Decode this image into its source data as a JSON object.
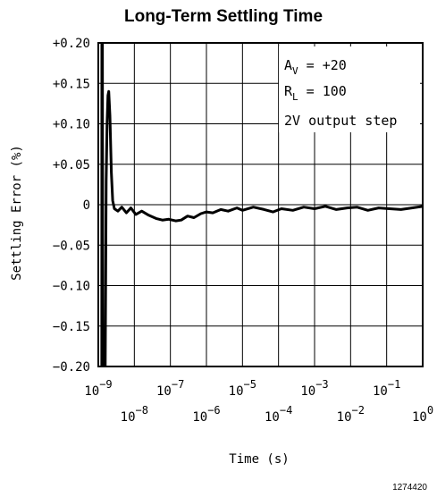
{
  "chart_data": {
    "type": "line",
    "title": "Long-Term Settling Time",
    "xlabel": "Time (s)",
    "ylabel": "Settling Error (%)",
    "x_scale": "log",
    "xlim": [
      1e-09,
      1
    ],
    "ylim": [
      -0.2,
      0.2
    ],
    "grid": true,
    "y_ticks": [
      {
        "value": 0.2,
        "label": "+0.20"
      },
      {
        "value": 0.15,
        "label": "+0.15"
      },
      {
        "value": 0.1,
        "label": "+0.10"
      },
      {
        "value": 0.05,
        "label": "+0.05"
      },
      {
        "value": 0.0,
        "label": "0"
      },
      {
        "value": -0.05,
        "label": "-0.05"
      },
      {
        "value": -0.1,
        "label": "-0.10"
      },
      {
        "value": -0.15,
        "label": "-0.15"
      },
      {
        "value": -0.2,
        "label": "-0.20"
      }
    ],
    "x_ticks": [
      {
        "value": 1e-09,
        "base": "10",
        "exp": "-9",
        "row": 1
      },
      {
        "value": 1e-08,
        "base": "10",
        "exp": "-8",
        "row": 2
      },
      {
        "value": 1e-07,
        "base": "10",
        "exp": "-7",
        "row": 1
      },
      {
        "value": 1e-06,
        "base": "10",
        "exp": "-6",
        "row": 2
      },
      {
        "value": 1e-05,
        "base": "10",
        "exp": "-5",
        "row": 1
      },
      {
        "value": 0.0001,
        "base": "10",
        "exp": "-4",
        "row": 2
      },
      {
        "value": 0.001,
        "base": "10",
        "exp": "-3",
        "row": 1
      },
      {
        "value": 0.01,
        "base": "10",
        "exp": "-2",
        "row": 2
      },
      {
        "value": 0.1,
        "base": "10",
        "exp": "-1",
        "row": 1
      },
      {
        "value": 1,
        "base": "10",
        "exp": "0",
        "row": 2
      }
    ],
    "annotations": [
      {
        "main": "A",
        "sub": "V",
        "rest": " = +20"
      },
      {
        "main": "R",
        "sub": "L",
        "rest": " = 100"
      },
      {
        "main": "2V output step",
        "sub": "",
        "rest": ""
      }
    ],
    "series": [
      {
        "values": [
          [
            1.25e-09,
            -0.21
          ],
          [
            1.26e-09,
            0.21
          ],
          [
            1.3e-09,
            0.21
          ],
          [
            1.33e-09,
            -0.21
          ],
          [
            1.55e-09,
            -0.21
          ],
          [
            1.65e-09,
            0.03
          ],
          [
            1.75e-09,
            0.1
          ],
          [
            1.85e-09,
            0.135
          ],
          [
            1.95e-09,
            0.14
          ],
          [
            2.1e-09,
            0.11
          ],
          [
            2.3e-09,
            0.04
          ],
          [
            2.5e-09,
            0.005
          ],
          [
            2.8e-09,
            -0.005
          ],
          [
            3.5e-09,
            -0.008
          ],
          [
            4.5e-09,
            -0.003
          ],
          [
            6e-09,
            -0.01
          ],
          [
            8e-09,
            -0.004
          ],
          [
            1.1e-08,
            -0.012
          ],
          [
            1.6e-08,
            -0.008
          ],
          [
            2.5e-08,
            -0.013
          ],
          [
            4e-08,
            -0.017
          ],
          [
            6e-08,
            -0.019
          ],
          [
            9e-08,
            -0.018
          ],
          [
            1.4e-07,
            -0.02
          ],
          [
            2e-07,
            -0.019
          ],
          [
            3e-07,
            -0.014
          ],
          [
            4.5e-07,
            -0.016
          ],
          [
            7e-07,
            -0.011
          ],
          [
            1e-06,
            -0.009
          ],
          [
            1.5e-06,
            -0.01
          ],
          [
            2.5e-06,
            -0.006
          ],
          [
            4e-06,
            -0.008
          ],
          [
            7e-06,
            -0.004
          ],
          [
            1e-05,
            -0.007
          ],
          [
            2e-05,
            -0.003
          ],
          [
            4e-05,
            -0.006
          ],
          [
            7e-05,
            -0.009
          ],
          [
            0.00012,
            -0.005
          ],
          [
            0.00025,
            -0.007
          ],
          [
            0.0005,
            -0.003
          ],
          [
            0.001,
            -0.005
          ],
          [
            0.002,
            -0.002
          ],
          [
            0.004,
            -0.006
          ],
          [
            0.008,
            -0.004
          ],
          [
            0.015,
            -0.003
          ],
          [
            0.03,
            -0.007
          ],
          [
            0.06,
            -0.004
          ],
          [
            0.12,
            -0.005
          ],
          [
            0.25,
            -0.006
          ],
          [
            0.5,
            -0.004
          ],
          [
            1,
            -0.002
          ]
        ]
      }
    ]
  },
  "figure_number": "1274420"
}
